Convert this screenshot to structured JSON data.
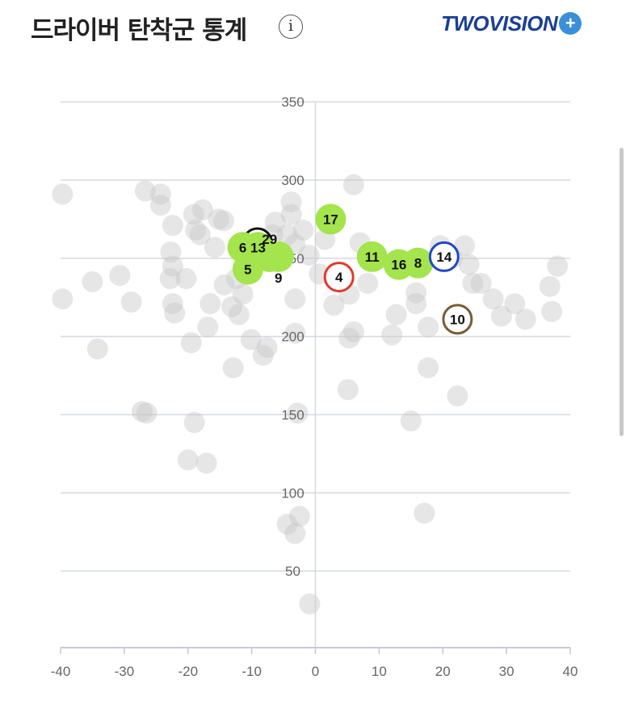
{
  "header": {
    "title": "드라이버 탄착군 통계",
    "info_icon": "i",
    "logo_text": "TWOVISION",
    "logo_badge": "PLUS"
  },
  "colors": {
    "highlight_fill": "#a4e44c",
    "background_fill": "#c8c8c8",
    "grid": "#d5d9e0",
    "red": "#e03a2c",
    "blue": "#1f47c9",
    "brown": "#7a5a36",
    "black": "#111111"
  },
  "chart_data": {
    "type": "scatter",
    "title": "드라이버 탄착군 통계",
    "xlim": [
      -40,
      40
    ],
    "ylim": [
      0,
      350
    ],
    "x_ticks": [
      -40,
      -30,
      -20,
      -10,
      0,
      10,
      20,
      30,
      40
    ],
    "y_ticks": [
      50,
      100,
      150,
      200,
      250,
      300,
      350
    ],
    "grid": true,
    "highlighted": [
      {
        "label": "13",
        "x": -9.1,
        "y": 260,
        "style": "ring",
        "color": "black",
        "hidden_label": true
      },
      {
        "label": "6",
        "x": -11.4,
        "y": 257,
        "style": "green"
      },
      {
        "label": "13",
        "x": -9.0,
        "y": 257,
        "style": "green"
      },
      {
        "label": "5",
        "x": -10.6,
        "y": 243,
        "style": "green"
      },
      {
        "label": "29",
        "x": -7.2,
        "y": 251,
        "style": "green"
      },
      {
        "label": "9",
        "x": -5.8,
        "y": 251,
        "style": "green"
      },
      {
        "label": "17",
        "x": 2.4,
        "y": 275,
        "style": "green"
      },
      {
        "label": "4",
        "x": 3.7,
        "y": 238,
        "style": "ring",
        "color": "red"
      },
      {
        "label": "11",
        "x": 8.9,
        "y": 251,
        "style": "green"
      },
      {
        "label": "16",
        "x": 13.1,
        "y": 246,
        "style": "green"
      },
      {
        "label": "8",
        "x": 16.1,
        "y": 247,
        "style": "green"
      },
      {
        "label": "14",
        "x": 20.2,
        "y": 251,
        "style": "ring",
        "color": "blue"
      },
      {
        "label": "10",
        "x": 22.3,
        "y": 211,
        "style": "ring",
        "color": "brown"
      }
    ],
    "background_points": [
      [
        -39.7,
        291
      ],
      [
        -39.7,
        224
      ],
      [
        -35.0,
        235
      ],
      [
        -34.2,
        192
      ],
      [
        -30.7,
        239
      ],
      [
        -28.9,
        222
      ],
      [
        -26.7,
        293
      ],
      [
        -24.3,
        291
      ],
      [
        -24.3,
        284
      ],
      [
        -22.4,
        271
      ],
      [
        -22.7,
        254
      ],
      [
        -22.4,
        245
      ],
      [
        -22.8,
        237
      ],
      [
        -22.4,
        221
      ],
      [
        -22.1,
        215
      ],
      [
        -20.3,
        237
      ],
      [
        -19.5,
        196
      ],
      [
        -19.1,
        278
      ],
      [
        -18.8,
        268
      ],
      [
        -18.1,
        265
      ],
      [
        -16.9,
        206
      ],
      [
        -16.5,
        221
      ],
      [
        -15.8,
        257
      ],
      [
        -15.2,
        275
      ],
      [
        -14.4,
        274
      ],
      [
        -14.3,
        233
      ],
      [
        -13.1,
        219
      ],
      [
        -12.9,
        180
      ],
      [
        -12.0,
        214
      ],
      [
        -11.4,
        227
      ],
      [
        -12.4,
        237
      ],
      [
        -10.1,
        198
      ],
      [
        -8.2,
        188
      ],
      [
        -7.6,
        193
      ],
      [
        -6.7,
        265
      ],
      [
        -6.3,
        273
      ],
      [
        -4.4,
        265
      ],
      [
        -3.8,
        278
      ],
      [
        -3.2,
        259
      ],
      [
        -1.9,
        268
      ],
      [
        -3.2,
        224
      ],
      [
        -3.2,
        202
      ],
      [
        -2.8,
        151
      ],
      [
        -4.4,
        80
      ],
      [
        -2.5,
        85
      ],
      [
        -3.2,
        74
      ],
      [
        -0.9,
        29
      ],
      [
        0.6,
        240
      ],
      [
        2.9,
        220
      ],
      [
        5.3,
        227
      ],
      [
        6.0,
        297
      ],
      [
        7.0,
        260
      ],
      [
        6.0,
        203
      ],
      [
        5.3,
        199
      ],
      [
        5.1,
        166
      ],
      [
        8.2,
        234
      ],
      [
        12.0,
        201
      ],
      [
        12.7,
        214
      ],
      [
        15.8,
        228
      ],
      [
        15.8,
        221
      ],
      [
        17.1,
        87
      ],
      [
        17.7,
        206
      ],
      [
        17.7,
        180
      ],
      [
        19.6,
        258
      ],
      [
        21.5,
        250
      ],
      [
        23.4,
        258
      ],
      [
        24.1,
        246
      ],
      [
        24.7,
        234
      ],
      [
        26.0,
        234
      ],
      [
        27.9,
        224
      ],
      [
        29.2,
        213
      ],
      [
        31.3,
        221
      ],
      [
        33.0,
        211
      ],
      [
        36.8,
        232
      ],
      [
        38.0,
        245
      ],
      [
        37.1,
        216
      ],
      [
        22.3,
        162
      ],
      [
        15.0,
        146
      ],
      [
        -27.2,
        152
      ],
      [
        -26.5,
        151
      ],
      [
        -19.0,
        145
      ],
      [
        -20.0,
        121
      ],
      [
        -17.1,
        119
      ],
      [
        -3.8,
        286
      ],
      [
        -17.7,
        281
      ],
      [
        -1.0,
        252
      ],
      [
        1.5,
        262
      ]
    ]
  }
}
